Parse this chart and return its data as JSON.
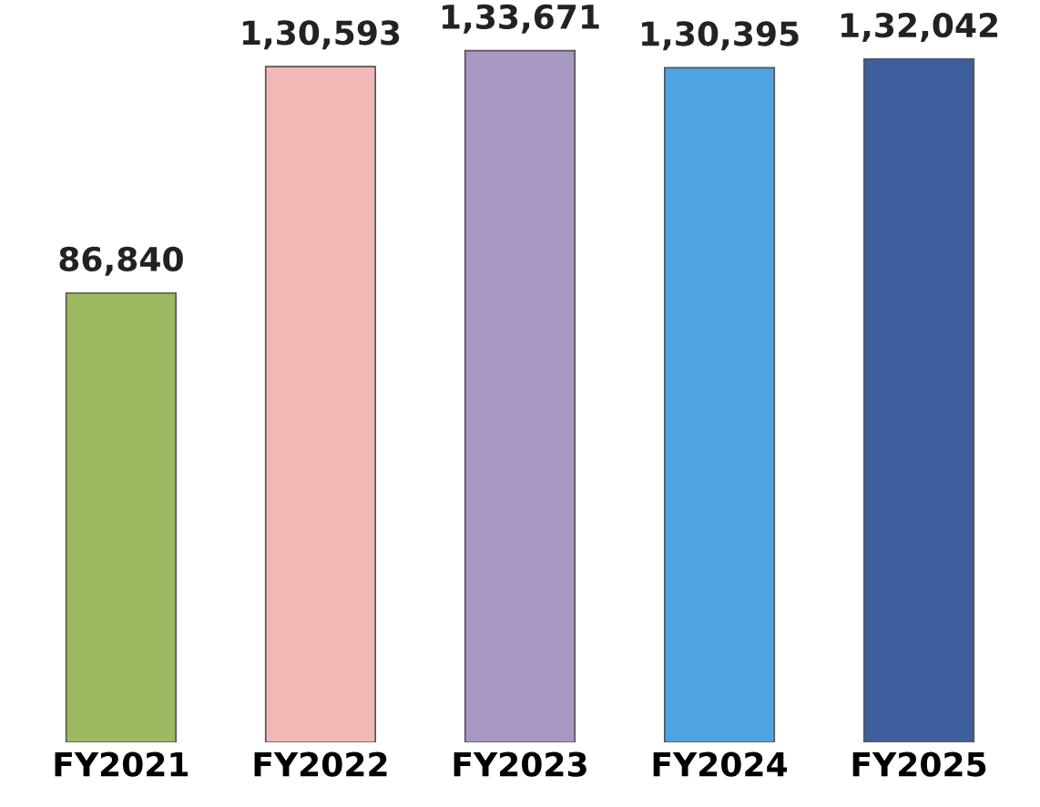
{
  "chart_data": {
    "type": "bar",
    "categories": [
      "FY2021",
      "FY2022",
      "FY2023",
      "FY2024",
      "FY2025"
    ],
    "values": [
      86840,
      130593,
      133671,
      130395,
      132042
    ],
    "value_labels": [
      "86,840",
      "1,30,593",
      "1,33,671",
      "1,30,395",
      "1,32,042"
    ],
    "colors": [
      "#9cba5f",
      "#f2b8b5",
      "#a998c4",
      "#4fa3e0",
      "#3f5e9e"
    ],
    "grid": false,
    "legend": false
  }
}
